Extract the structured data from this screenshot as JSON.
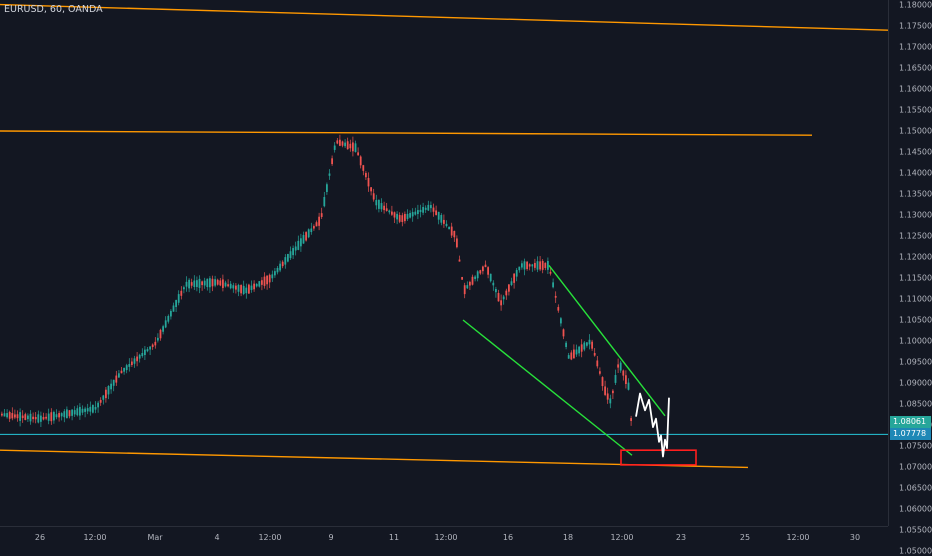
{
  "header": {
    "symbol": "EURUSD, 60, OANDA"
  },
  "price_axis": {
    "ticks": [
      "1.18000",
      "1.17500",
      "1.17000",
      "1.16500",
      "1.16000",
      "1.15500",
      "1.15000",
      "1.14500",
      "1.14000",
      "1.13500",
      "1.13000",
      "1.12500",
      "1.12000",
      "1.11500",
      "1.11000",
      "1.10500",
      "1.10000",
      "1.09500",
      "1.09000",
      "1.08500",
      "1.08000",
      "1.07500",
      "1.07000",
      "1.06500",
      "1.06000",
      "1.05500",
      "1.05000"
    ],
    "last_price": "1.08061",
    "line_price": "1.07778"
  },
  "time_axis": {
    "ticks": [
      "26",
      "12:00",
      "Mar",
      "4",
      "12:00",
      "9",
      "11",
      "12:00",
      "16",
      "18",
      "12:00",
      "23",
      "25",
      "12:00",
      "30"
    ]
  },
  "colors": {
    "background": "#131722",
    "up_candle": "#26a69a",
    "down_candle": "#ef5350",
    "channel_line": "#ff9800",
    "wedge_line": "#27e13a",
    "horizontal_line": "#26c6da",
    "highlight_box": "#ff1e1e",
    "projection": "#ffffff"
  },
  "chart_data": {
    "type": "candlestick",
    "symbol": "EURUSD",
    "interval": "60",
    "source": "OANDA",
    "ylim": [
      1.0455,
      1.1808
    ],
    "price_path": [
      [
        "26",
        1.0815
      ],
      [
        "12:00",
        1.084
      ],
      [
        "Mar",
        1.0995
      ],
      [
        "4",
        1.114
      ],
      [
        "12:00",
        1.115
      ],
      [
        "9",
        1.1475
      ],
      [
        "11",
        1.129
      ],
      [
        "12:00",
        1.125
      ],
      [
        "16",
        1.115
      ],
      [
        "18",
        1.1
      ],
      [
        "12:00",
        1.075
      ]
    ],
    "last_price": 1.08061,
    "horizontal_line": 1.07778,
    "drawings": {
      "channel_lines": [
        {
          "from": [
            1.15
          ],
          "to": [
            1.149
          ]
        },
        {
          "from": [
            1.1801
          ],
          "to": [
            1.174
          ]
        },
        {
          "from": [
            1.074
          ],
          "to": [
            1.0699
          ]
        }
      ],
      "wedge_lines": [
        {
          "from": [
            "12:00",
            1.105
          ],
          "to": [
            "12:00",
            1.0728
          ]
        },
        {
          "from": [
            "18",
            1.118
          ],
          "to": [
            "23",
            1.0822
          ]
        }
      ],
      "support_zone": {
        "price_range": [
          1.0705,
          1.074
        ]
      },
      "projection": "zigzag"
    }
  }
}
